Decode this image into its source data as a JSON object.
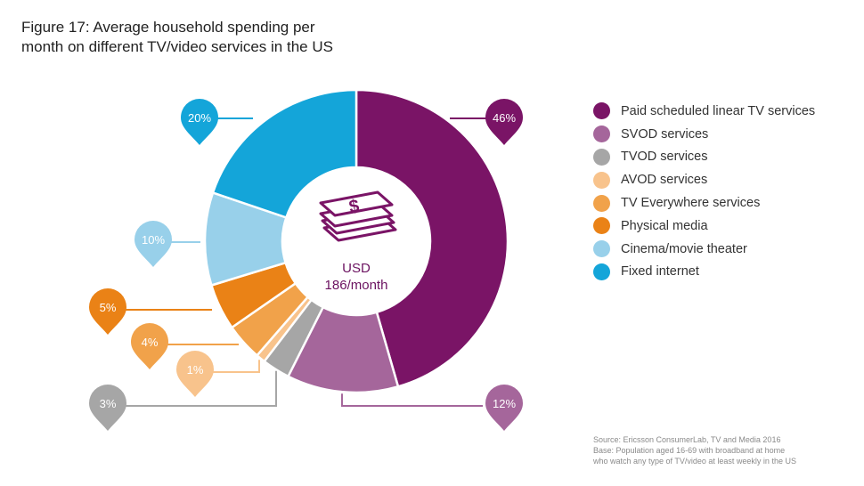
{
  "title_lines": [
    "Figure 17: Average household spending per",
    "month on different TV/video services in the US"
  ],
  "center": {
    "line1": "USD",
    "line2": "186/month",
    "icon": "money-stack-icon"
  },
  "chart_data": {
    "type": "pie",
    "donut": true,
    "categories": [
      "Paid scheduled linear TV services",
      "SVOD services",
      "TVOD services",
      "AVOD services",
      "TV Everywhere services",
      "Physical media",
      "Cinema/movie theater",
      "Fixed internet"
    ],
    "values": [
      46,
      12,
      3,
      1,
      4,
      5,
      10,
      20
    ],
    "labels": [
      "46%",
      "12%",
      "3%",
      "1%",
      "4%",
      "5%",
      "10%",
      "20%"
    ],
    "colors": [
      "#7a1466",
      "#a5669b",
      "#a6a6a6",
      "#f8c38c",
      "#f1a24a",
      "#ea8216",
      "#98d0ea",
      "#14a5d9"
    ],
    "legend_position": "right"
  },
  "source_lines": [
    "Source: Ericsson ConsumerLab, TV and Media 2016",
    "Base: Population aged 16-69 with broadband at home",
    "who watch any type of TV/video at least weekly in the US"
  ]
}
